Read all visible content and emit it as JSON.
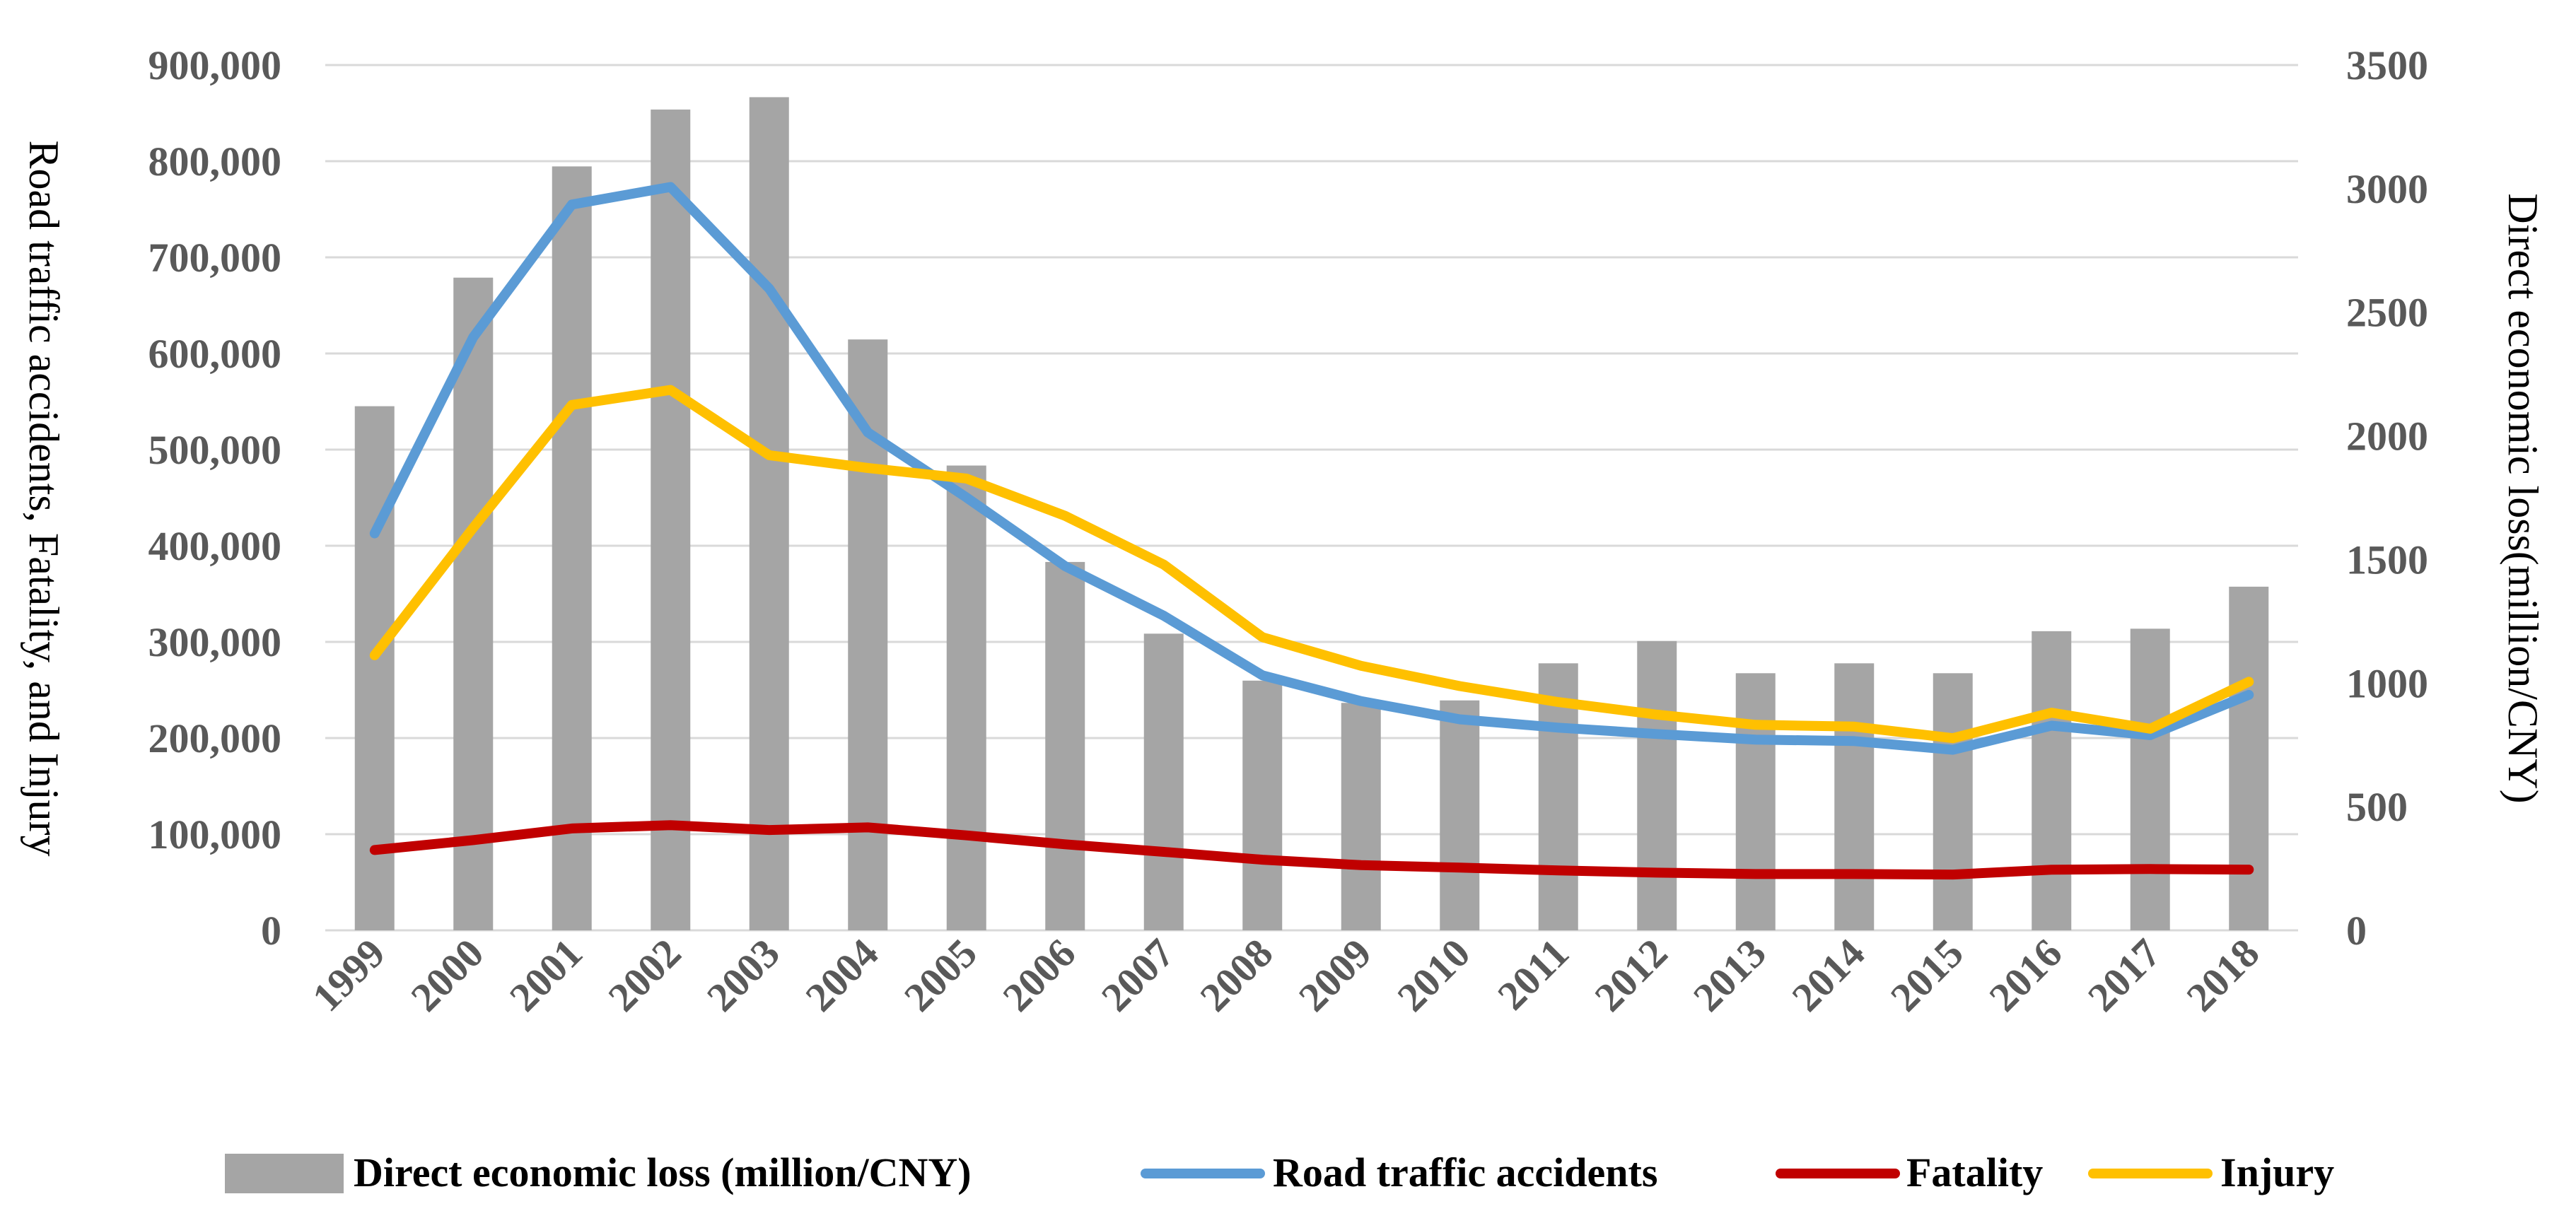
{
  "chart_data": {
    "type": "bar",
    "x": [
      "1999",
      "2000",
      "2001",
      "2002",
      "2003",
      "2004",
      "2005",
      "2006",
      "2007",
      "2008",
      "2009",
      "2010",
      "2011",
      "2012",
      "2013",
      "2014",
      "2015",
      "2016",
      "2017",
      "2018"
    ],
    "bar_series": {
      "name": "Direct economic loss (million/CNY)",
      "axis": "right",
      "color": "#A5A5A5",
      "values": [
        2120,
        2640,
        3090,
        3320,
        3370,
        2390,
        1880,
        1490,
        1200,
        1010,
        920,
        930,
        1080,
        1170,
        1040,
        1080,
        1040,
        1210,
        1220,
        1390
      ]
    },
    "line_series": [
      {
        "name": "Road traffic accidents",
        "axis": "left",
        "color": "#5B9BD5",
        "values": [
          412860,
          616971,
          754919,
          773137,
          667507,
          517889,
          450254,
          378781,
          327209,
          265204,
          238351,
          219521,
          210812,
          204196,
          198394,
          196812,
          187781,
          212846,
          203049,
          244937
        ]
      },
      {
        "name": "Fatality",
        "axis": "left",
        "color": "#C00000",
        "values": [
          83529,
          93853,
          105930,
          109381,
          104372,
          107077,
          98738,
          89455,
          81649,
          73484,
          67759,
          65225,
          62387,
          59997,
          58539,
          58523,
          58022,
          63093,
          63772,
          63194
        ]
      },
      {
        "name": "Injury",
        "axis": "left",
        "color": "#FFC000",
        "values": [
          286080,
          418721,
          546485,
          562074,
          494174,
          480864,
          469911,
          431139,
          380442,
          304919,
          275125,
          254075,
          237421,
          224327,
          213724,
          211882,
          199880,
          226430,
          209654,
          258532
        ]
      }
    ],
    "left_axis": {
      "label": "Road traffic accidents, Fatality, and Injury",
      "ylim": [
        0,
        900000
      ],
      "ticks": [
        "0",
        "100,000",
        "200,000",
        "300,000",
        "400,000",
        "500,000",
        "600,000",
        "700,000",
        "800,000",
        "900,000"
      ]
    },
    "right_axis": {
      "label": "Direct economic loss(million/CNY)",
      "ylim": [
        0,
        3500
      ],
      "ticks": [
        "0",
        "500",
        "1000",
        "1500",
        "2000",
        "2500",
        "3000",
        "3500"
      ]
    },
    "grid": true,
    "legend": {
      "position": "bottom",
      "entries": [
        "Direct economic loss (million/CNY)",
        "Road traffic accidents",
        "Fatality",
        "Injury"
      ]
    }
  }
}
